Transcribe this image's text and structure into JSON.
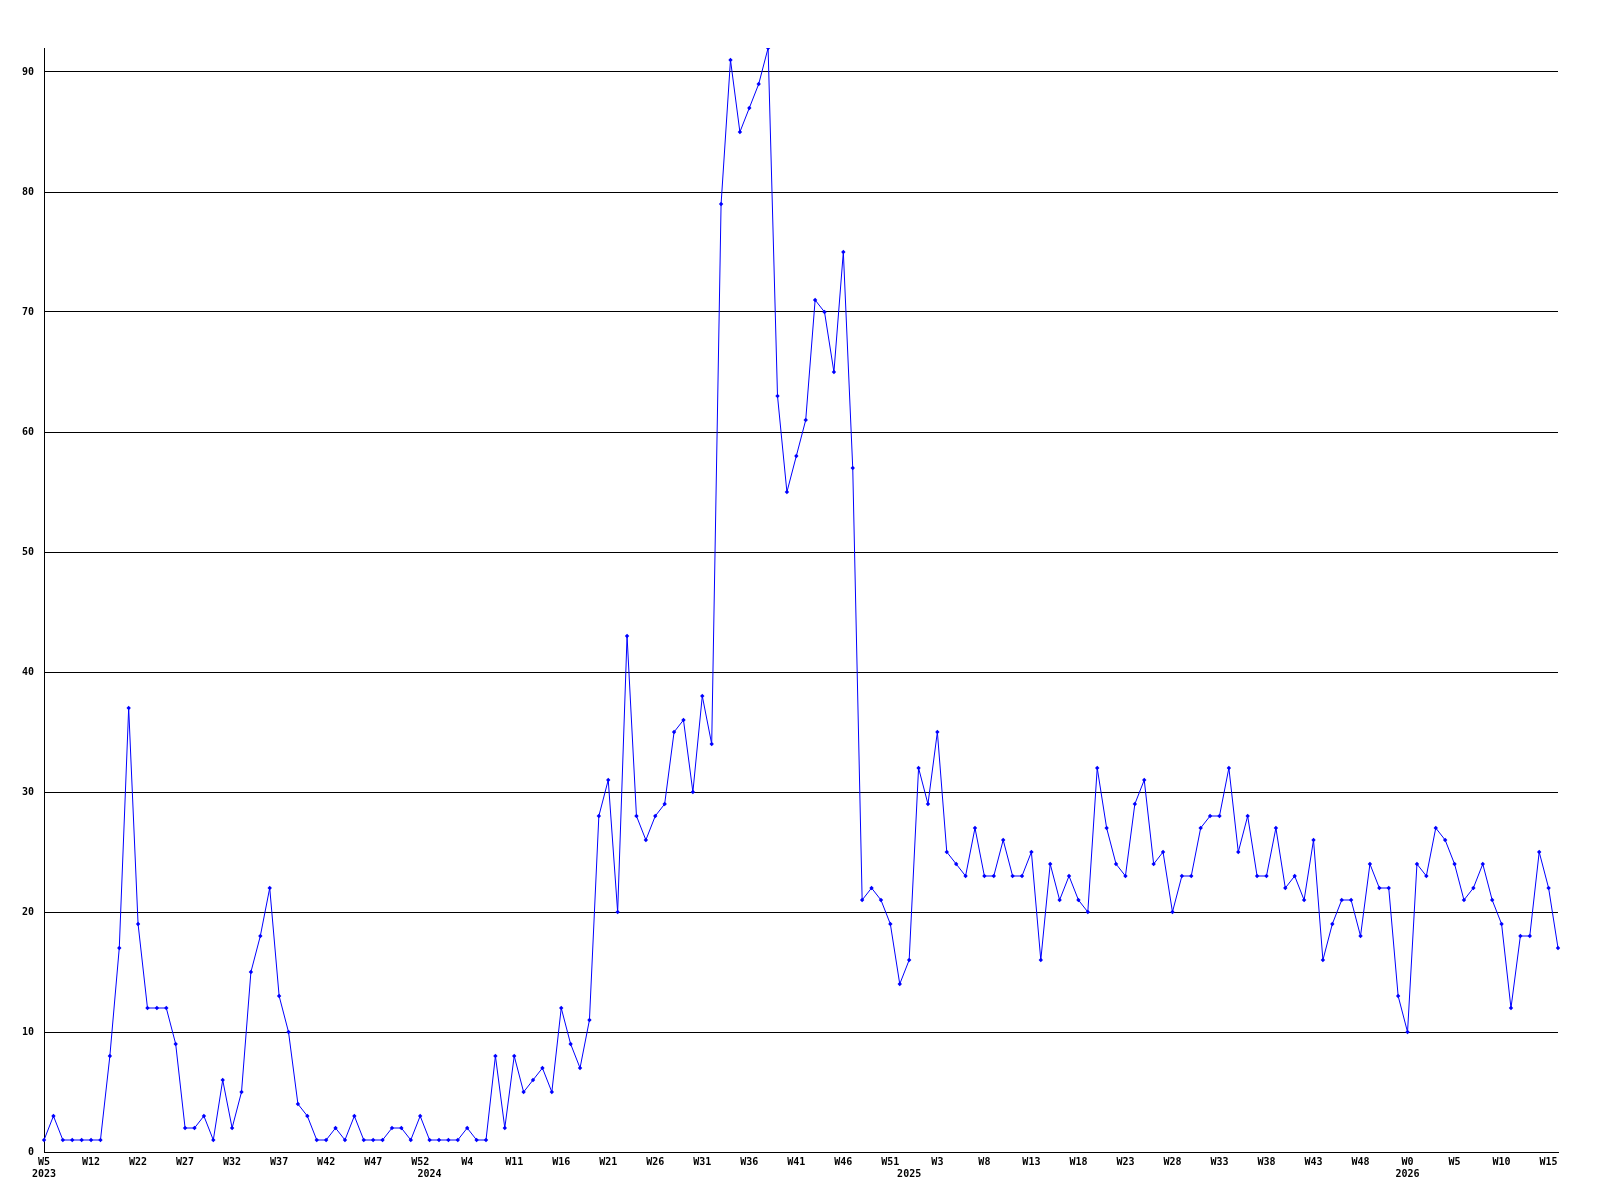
{
  "chart_data": {
    "type": "line",
    "categories": [
      "W5\n2023",
      null,
      null,
      null,
      null,
      "W12",
      null,
      null,
      null,
      null,
      "W22",
      null,
      null,
      null,
      null,
      "W27",
      null,
      null,
      null,
      null,
      "W32",
      null,
      null,
      null,
      null,
      "W37",
      null,
      null,
      null,
      null,
      "W42",
      null,
      null,
      null,
      null,
      "W47",
      null,
      null,
      null,
      null,
      "W52",
      "\n2024",
      null,
      null,
      null,
      "W4",
      null,
      null,
      null,
      null,
      "W11",
      null,
      null,
      null,
      null,
      "W16",
      null,
      null,
      null,
      null,
      "W21",
      null,
      null,
      null,
      null,
      "W26",
      null,
      null,
      null,
      null,
      "W31",
      null,
      null,
      null,
      null,
      "W36",
      null,
      null,
      null,
      null,
      "W41",
      null,
      null,
      null,
      null,
      "W46",
      null,
      null,
      null,
      null,
      "W51",
      null,
      "\n2025",
      null,
      null,
      "W3",
      null,
      null,
      null,
      null,
      "W8",
      null,
      null,
      null,
      null,
      "W13",
      null,
      null,
      null,
      null,
      "W18",
      null,
      null,
      null,
      null,
      "W23",
      null,
      null,
      null,
      null,
      "W28",
      null,
      null,
      null,
      null,
      "W33",
      null,
      null,
      null,
      null,
      "W38",
      null,
      null,
      null,
      null,
      "W43",
      null,
      null,
      null,
      null,
      "W48",
      null,
      null,
      null,
      null,
      "W0\n2026",
      null,
      null,
      null,
      null,
      "W5",
      null,
      null,
      null,
      null,
      "W10",
      null,
      null,
      null,
      null,
      "W15",
      null
    ],
    "series": [
      {
        "color": "#0000ff",
        "values": [
          1,
          3,
          1,
          1,
          1,
          1,
          1,
          8,
          17,
          37,
          19,
          12,
          12,
          12,
          9,
          2,
          2,
          3,
          1,
          6,
          2,
          5,
          15,
          18,
          22,
          13,
          10,
          4,
          3,
          1,
          1,
          2,
          1,
          3,
          1,
          1,
          1,
          2,
          2,
          1,
          3,
          1,
          1,
          1,
          1,
          2,
          1,
          1,
          8,
          2,
          8,
          5,
          6,
          7,
          5,
          12,
          9,
          7,
          11,
          28,
          31,
          20,
          43,
          28,
          26,
          28,
          29,
          35,
          36,
          30,
          38,
          34,
          79,
          91,
          85,
          87,
          89,
          92,
          63,
          55,
          58,
          61,
          71,
          70,
          65,
          75,
          57,
          21,
          22,
          21,
          19,
          14,
          16,
          32,
          29,
          35,
          25,
          24,
          23,
          27,
          23,
          23,
          26,
          23,
          23,
          25,
          16,
          24,
          21,
          23,
          21,
          20,
          32,
          27,
          24,
          23,
          29,
          31,
          24,
          25,
          20,
          23,
          23,
          27,
          28,
          28,
          32,
          25,
          28,
          23,
          23,
          27,
          22,
          23,
          21,
          26,
          16,
          19,
          21,
          21,
          18,
          24,
          22,
          22,
          13,
          10,
          24,
          23,
          27,
          26,
          24,
          21,
          22,
          24,
          21,
          19,
          12,
          18,
          18,
          25,
          22,
          17
        ]
      }
    ],
    "ylim": [
      0,
      92
    ],
    "yticks": [
      0,
      10,
      20,
      30,
      40,
      50,
      60,
      70,
      80,
      90
    ],
    "grid": "y",
    "legend": false,
    "marker": "diamond",
    "line_style": "solid"
  }
}
